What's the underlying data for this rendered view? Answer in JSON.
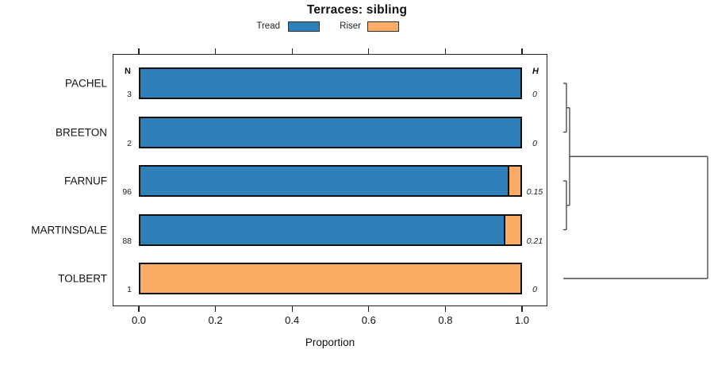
{
  "title": "Terraces: sibling",
  "legend": [
    {
      "label": "Tread",
      "color": "#2f7fb8"
    },
    {
      "label": "Riser",
      "color": "#fcac64"
    }
  ],
  "columns": {
    "n_header": "N",
    "h_header": "H"
  },
  "axis": {
    "xlabel": "Proportion",
    "tick_labels": [
      "0.0",
      "0.2",
      "0.4",
      "0.6",
      "0.8",
      "1.0"
    ],
    "tick_values": [
      0,
      0.2,
      0.4,
      0.6,
      0.8,
      1.0
    ]
  },
  "chart_data": {
    "type": "bar",
    "stacked": true,
    "orientation": "horizontal",
    "title": "Terraces: sibling",
    "xlabel": "Proportion",
    "xlim": [
      0,
      1.0
    ],
    "grid": false,
    "legend_position": "top",
    "categories": [
      "PACHEL",
      "BREETON",
      "FARNUF",
      "MARTINSDALE",
      "TOLBERT"
    ],
    "series": [
      {
        "name": "Tread",
        "color": "#2f7fb8",
        "values": [
          1.0,
          1.0,
          0.97,
          0.96,
          0.0
        ]
      },
      {
        "name": "Riser",
        "color": "#fcac64",
        "values": [
          0.0,
          0.0,
          0.03,
          0.04,
          1.0
        ]
      }
    ],
    "n_values": [
      "3",
      "2",
      "96",
      "88",
      "1"
    ],
    "h_values": [
      "0",
      "0",
      "0.15",
      "0.21",
      "0"
    ]
  },
  "dendrogram": {
    "leaves": [
      "PACHEL",
      "BREETON",
      "FARNUF",
      "MARTINSDALE",
      "TOLBERT"
    ],
    "merges": [
      {
        "a": "PACHEL",
        "b": "BREETON",
        "height": 0.022
      },
      {
        "a": "FARNUF",
        "b": "MARTINSDALE",
        "height": 0.022
      },
      {
        "a": "m0",
        "b": "m1",
        "height": 0.044
      },
      {
        "a": "m2",
        "b": "TOLBERT",
        "height": 1.0
      }
    ]
  }
}
